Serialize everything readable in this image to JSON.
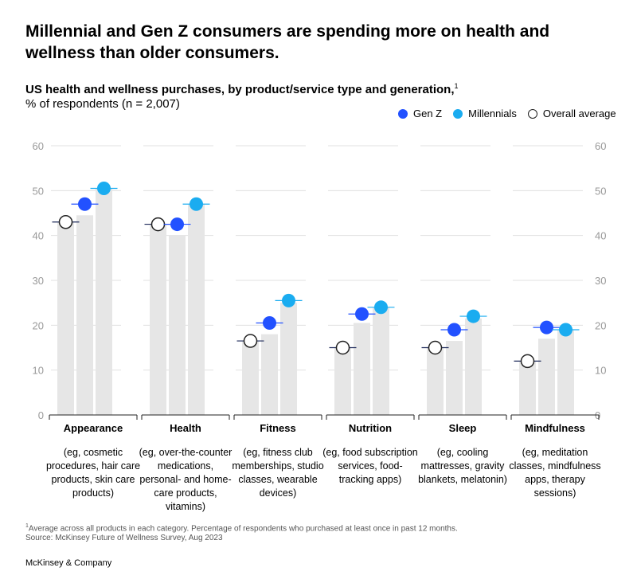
{
  "title": "Millennial and Gen Z consumers are spending more on health and wellness than older consumers.",
  "subtitle": "US health and wellness purchases, by product/service type and generation,",
  "subtitle_footnote_marker": "1",
  "unit_label": "% of respondents (n = 2,007)",
  "legend": {
    "gen_z": "Gen Z",
    "millennials": "Millennials",
    "overall": "Overall average"
  },
  "colors": {
    "gen_z": "#2251ff",
    "millennials": "#1aacf0",
    "overall_fill": "#ffffff",
    "overall_stroke": "#222222",
    "bar": "#e6e6e6",
    "grid": "#e0e0e0",
    "axis_text": "#999999"
  },
  "chart_data": {
    "type": "bar",
    "categories": [
      "Appearance",
      "Health",
      "Fitness",
      "Nutrition",
      "Sleep",
      "Mindfulness"
    ],
    "descriptions": [
      "(eg, cosmetic procedures, hair care products, skin care products)",
      "(eg, over-the-counter medications, personal- and home-care products, vitamins)",
      "(eg, fitness club memberships, studio classes, wearable devices)",
      "(eg, food subscription services, food-tracking apps)",
      "(eg, cooling mattresses, gravity blankets, melatonin)",
      "(eg, meditation classes, mindfulness apps, therapy sessions)"
    ],
    "series": [
      {
        "name": "Overall average",
        "values": [
          43,
          42.5,
          16.5,
          15,
          15,
          12
        ]
      },
      {
        "name": "Gen Z",
        "values": [
          47,
          42.5,
          20.5,
          22.5,
          19,
          19.5
        ]
      },
      {
        "name": "Millennials",
        "values": [
          50.5,
          47,
          25.5,
          24,
          22,
          19
        ]
      }
    ],
    "bar_heights": [
      [
        43,
        44.5,
        50.5
      ],
      [
        42.5,
        40,
        47
      ],
      [
        16.5,
        18,
        25
      ],
      [
        15,
        20.5,
        24
      ],
      [
        15,
        16.5,
        21.5
      ],
      [
        12,
        17,
        19
      ]
    ],
    "ylim": [
      0,
      60
    ],
    "yticks": [
      0,
      10,
      20,
      30,
      40,
      50,
      60
    ],
    "grid": true,
    "legend_position": "top-right"
  },
  "footnote": "Average across all products in each category. Percentage of respondents who purchased at least once in past 12 months.",
  "footnote_marker": "1",
  "source": "Source: McKinsey Future of Wellness Survey, Aug 2023",
  "brand": "McKinsey & Company"
}
